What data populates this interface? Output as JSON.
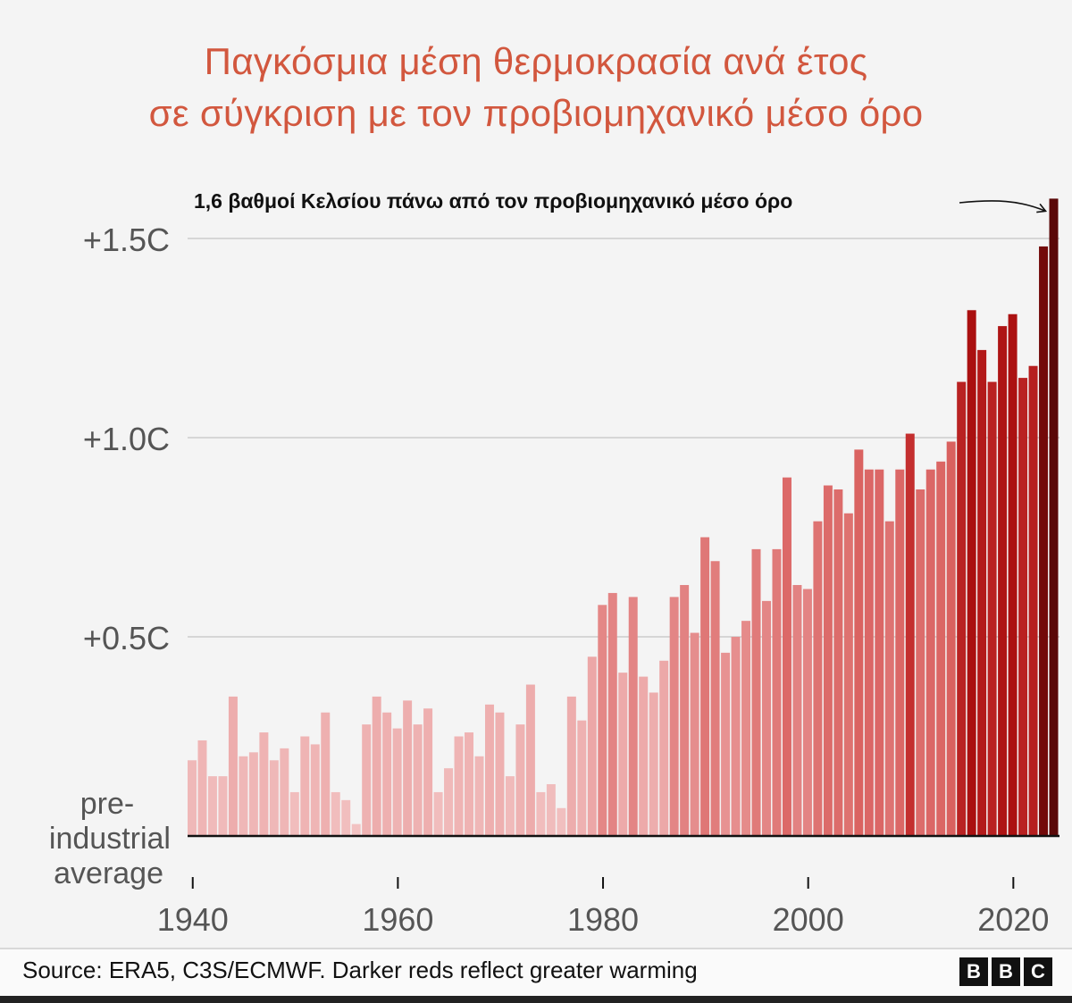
{
  "title": {
    "line1": "Παγκόσμια μέση θερμοκρασία ανά έτος",
    "line2": "σε σύγκριση με τον προβιομηχανικό μέσο όρο"
  },
  "annotation": "1,6 βαθμοί Κελσίου πάνω από τον προβιομηχανικό μέσο όρο",
  "source": "Source: ERA5, C3S/ECMWF. Darker reds reflect greater warming",
  "logo": [
    "B",
    "B",
    "C"
  ],
  "colors": {
    "title": "#d2573e",
    "light": "#f2c4c4",
    "mid": "#d9605e",
    "dark": "#a80d0d",
    "darkest": "#5a0808",
    "grid": "#cccccc",
    "axis": "#111111"
  },
  "chart_data": {
    "type": "bar",
    "title": "Παγκόσμια μέση θερμοκρασία ανά έτος σε σύγκριση με τον προβιομηχανικό μέσο όρο",
    "xlabel": "",
    "ylabel": "",
    "ylim": [
      0,
      1.6
    ],
    "yticks": [
      {
        "value": 1.5,
        "label": "+1.5C"
      },
      {
        "value": 1.0,
        "label": "+1.0C"
      },
      {
        "value": 0.5,
        "label": "+0.5C"
      }
    ],
    "baseline_label": [
      "pre-",
      "industrial",
      "average"
    ],
    "xticks": [
      {
        "year": 1940,
        "label": "1940"
      },
      {
        "year": 1960,
        "label": "1960"
      },
      {
        "year": 1980,
        "label": "1980"
      },
      {
        "year": 2000,
        "label": "2000"
      },
      {
        "year": 2020,
        "label": "2020"
      }
    ],
    "start_year": 1940,
    "values": [
      0.19,
      0.24,
      0.15,
      0.15,
      0.35,
      0.2,
      0.21,
      0.26,
      0.19,
      0.22,
      0.11,
      0.25,
      0.23,
      0.31,
      0.11,
      0.09,
      0.03,
      0.28,
      0.35,
      0.31,
      0.27,
      0.34,
      0.28,
      0.32,
      0.11,
      0.17,
      0.25,
      0.26,
      0.2,
      0.33,
      0.31,
      0.15,
      0.28,
      0.38,
      0.11,
      0.13,
      0.07,
      0.35,
      0.29,
      0.45,
      0.58,
      0.61,
      0.41,
      0.6,
      0.4,
      0.36,
      0.44,
      0.6,
      0.63,
      0.51,
      0.75,
      0.69,
      0.46,
      0.5,
      0.54,
      0.72,
      0.59,
      0.72,
      0.9,
      0.63,
      0.62,
      0.79,
      0.88,
      0.87,
      0.81,
      0.97,
      0.92,
      0.92,
      0.79,
      0.92,
      1.01,
      0.87,
      0.92,
      0.94,
      0.99,
      1.14,
      1.32,
      1.22,
      1.14,
      1.28,
      1.31,
      1.15,
      1.18,
      1.48,
      1.6
    ],
    "annotated_year": 2024,
    "annotated_value": 1.6
  }
}
